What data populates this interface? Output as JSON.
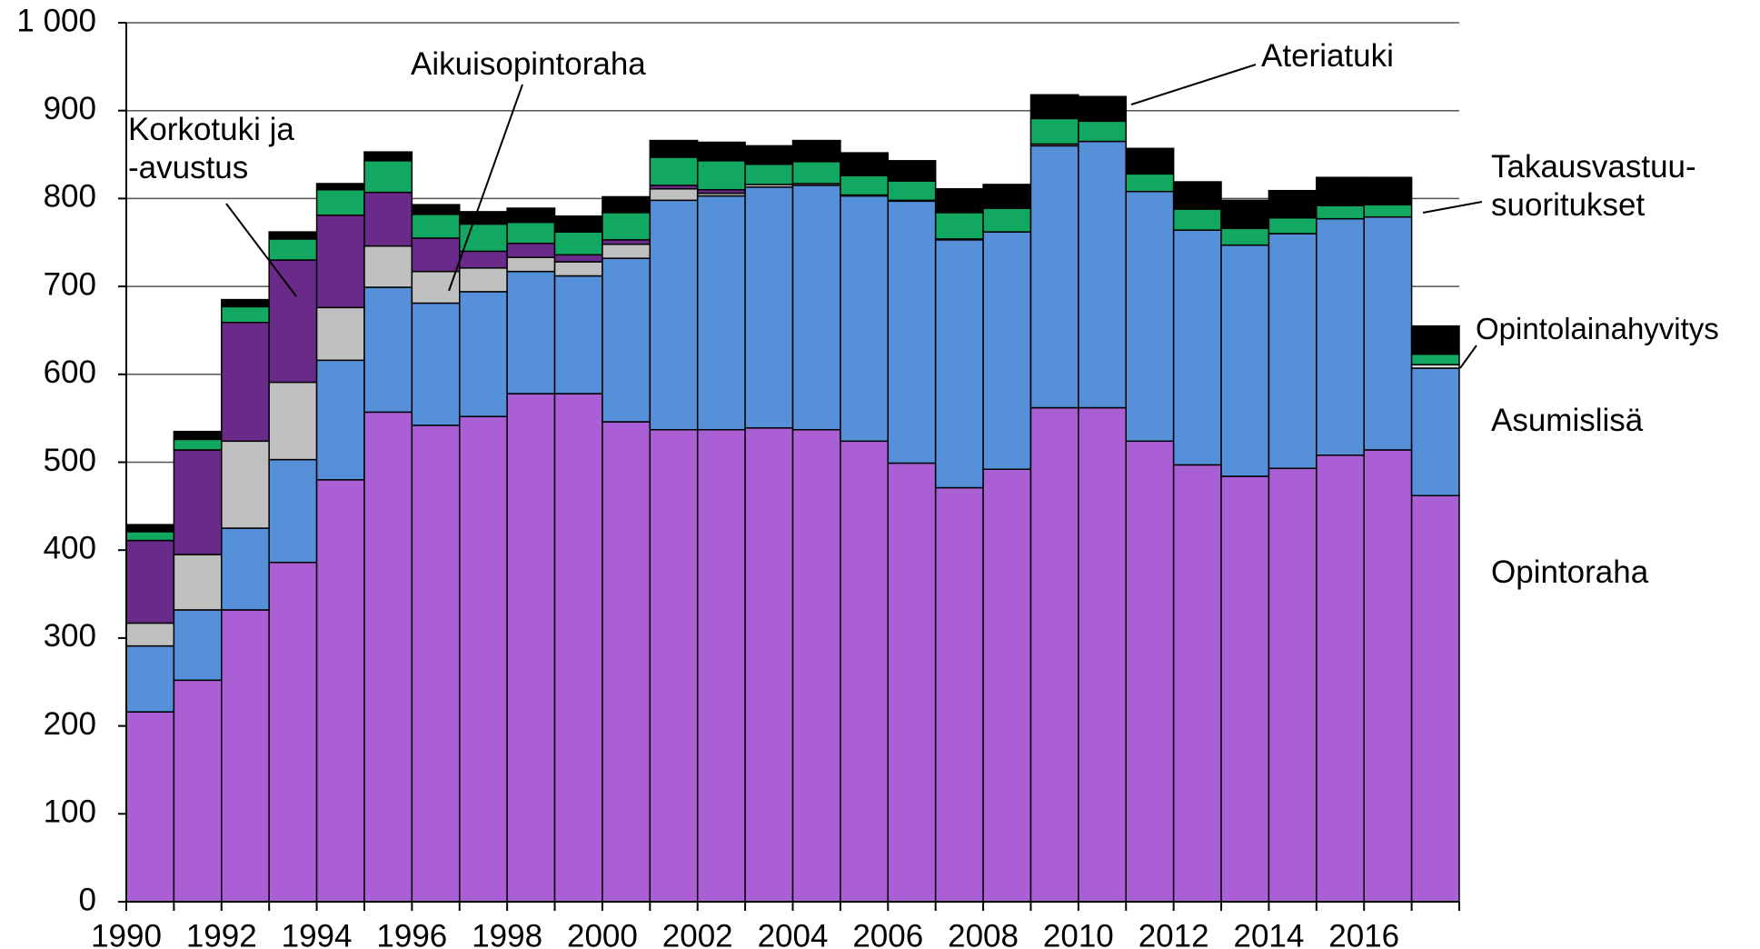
{
  "chart_data": {
    "type": "stacked-bar",
    "categories": [
      "1990",
      null,
      "1992",
      null,
      "1994",
      null,
      "1996",
      null,
      "1998",
      null,
      "2000",
      null,
      "2002",
      null,
      "2004",
      null,
      "2006",
      null,
      "2008",
      null,
      "2010",
      null,
      "2012",
      null,
      "2014",
      null,
      "2016",
      null
    ],
    "series": [
      {
        "name": "Opintoraha",
        "color": "#aa5fd5",
        "values": [
          216,
          252,
          332,
          386,
          480,
          557,
          542,
          552,
          578,
          578,
          546,
          537,
          537,
          539,
          537,
          524,
          499,
          471,
          492,
          562,
          562,
          524,
          497,
          484,
          493,
          508,
          514,
          462
        ]
      },
      {
        "name": "Asumislisä",
        "color": "#5590d8",
        "values": [
          75,
          80,
          93,
          117,
          136,
          142,
          139,
          142,
          139,
          134,
          186,
          261,
          266,
          274,
          278,
          279,
          298,
          282,
          270,
          298,
          303,
          284,
          267,
          263,
          267,
          269,
          265,
          145
        ]
      },
      {
        "name": "Aikuisopintoraha",
        "color": "#c0c0c0",
        "values": [
          26,
          63,
          99,
          88,
          60,
          47,
          36,
          27,
          16,
          16,
          16,
          13,
          3,
          3,
          2,
          1,
          1,
          1,
          0,
          2,
          0,
          0,
          0,
          0,
          0,
          0,
          0,
          0
        ]
      },
      {
        "name": "Korkotuki ja\n-avustus",
        "color": "#6a2a8a",
        "values": [
          94,
          119,
          135,
          139,
          105,
          61,
          38,
          19,
          16,
          8,
          5,
          4,
          4,
          0,
          0,
          0,
          0,
          0,
          0,
          0,
          0,
          0,
          0,
          0,
          0,
          0,
          0,
          0
        ]
      },
      {
        "name": "Opintolainahyvitys",
        "color": "#d9d9d9",
        "values": [
          0,
          0,
          0,
          0,
          0,
          0,
          0,
          0,
          0,
          0,
          0,
          0,
          0,
          0,
          0,
          0,
          0,
          0,
          0,
          0,
          0,
          0,
          0,
          0,
          0,
          0,
          0,
          4
        ]
      },
      {
        "name": "Takausvastuu-\nsuoritukset",
        "color": "#12a862",
        "values": [
          10,
          12,
          18,
          24,
          29,
          36,
          27,
          31,
          24,
          26,
          31,
          32,
          33,
          23,
          25,
          22,
          22,
          30,
          27,
          29,
          23,
          20,
          24,
          19,
          18,
          15,
          14,
          12
        ]
      },
      {
        "name": "Ateriatuki",
        "color": "#000000",
        "values": [
          8,
          9,
          8,
          8,
          7,
          10,
          11,
          14,
          16,
          18,
          18,
          19,
          21,
          21,
          24,
          26,
          23,
          27,
          27,
          27,
          28,
          29,
          31,
          32,
          31,
          32,
          31,
          32
        ]
      }
    ],
    "ylim": [
      0,
      1000
    ],
    "yticks": [
      0,
      100,
      200,
      300,
      400,
      500,
      600,
      700,
      800,
      900,
      {
        "value": 1000,
        "label": "1 000"
      }
    ],
    "grid": true
  }
}
